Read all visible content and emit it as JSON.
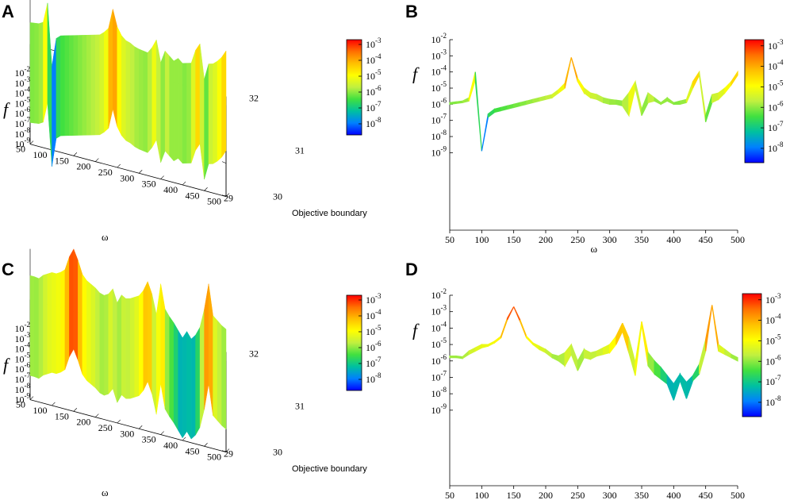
{
  "colors": {
    "colorbar_stops": [
      "#0000ff",
      "#0080ff",
      "#00c0a0",
      "#40e040",
      "#c0f040",
      "#ffff00",
      "#ffc000",
      "#ff7000",
      "#ff0000"
    ],
    "axis": "#000000",
    "surface_edge": "#000000"
  },
  "panels": [
    {
      "label": "A",
      "chart_data": {
        "type": "surface3d",
        "xlabel": "ω",
        "ylabel": "Objective boundary",
        "zlabel": "f",
        "x_ticks": [
          "50",
          "100",
          "150",
          "200",
          "250",
          "300",
          "350",
          "400",
          "450",
          "500"
        ],
        "y_ticks": [
          "29",
          "30",
          "31",
          "32"
        ],
        "z_ticks": [
          {
            "base": "10",
            "exp": "-2"
          },
          {
            "base": "10",
            "exp": "-3"
          },
          {
            "base": "10",
            "exp": "-4"
          },
          {
            "base": "10",
            "exp": "-5"
          },
          {
            "base": "10",
            "exp": "-6"
          },
          {
            "base": "10",
            "exp": "-7"
          },
          {
            "base": "10",
            "exp": "-8"
          },
          {
            "base": "10",
            "exp": "-9"
          }
        ],
        "colorbar_ticks": [
          {
            "base": "10",
            "exp": "-3"
          },
          {
            "base": "10",
            "exp": "-4"
          },
          {
            "base": "10",
            "exp": "-5"
          },
          {
            "base": "10",
            "exp": "-6"
          },
          {
            "base": "10",
            "exp": "-7"
          },
          {
            "base": "10",
            "exp": "-8"
          }
        ],
        "xlim": [
          50,
          500
        ],
        "ylim": [
          29,
          32
        ],
        "zlim_log10": [
          -9,
          -2
        ],
        "omega": [
          50,
          60,
          70,
          80,
          90,
          100,
          110,
          120,
          130,
          140,
          150,
          160,
          170,
          180,
          190,
          200,
          210,
          220,
          230,
          240,
          250,
          260,
          270,
          280,
          290,
          300,
          310,
          320,
          330,
          340,
          350,
          360,
          370,
          380,
          390,
          400,
          410,
          420,
          430,
          440,
          450,
          460,
          470,
          480,
          490,
          500
        ],
        "log10_f": [
          -5.9,
          -5.85,
          -5.8,
          -5.6,
          -4.0,
          -8.9,
          -6.6,
          -6.3,
          -6.2,
          -6.1,
          -6.0,
          -5.9,
          -5.8,
          -5.7,
          -5.6,
          -5.5,
          -5.4,
          -5.1,
          -4.7,
          -3.1,
          -4.4,
          -5.0,
          -5.3,
          -5.4,
          -5.6,
          -5.7,
          -5.75,
          -5.8,
          -5.3,
          -4.6,
          -6.3,
          -5.3,
          -5.6,
          -5.9,
          -5.6,
          -5.9,
          -5.8,
          -5.7,
          -4.6,
          -4.0,
          -6.7,
          -5.4,
          -5.3,
          -5.0,
          -4.6,
          -4.0
        ]
      }
    },
    {
      "label": "B",
      "chart_data": {
        "type": "line",
        "xlabel": "ω",
        "ylabel": "f",
        "x_ticks": [
          "50",
          "100",
          "150",
          "200",
          "250",
          "300",
          "350",
          "400",
          "450",
          "500"
        ],
        "y_ticks": [
          {
            "base": "10",
            "exp": "-2"
          },
          {
            "base": "10",
            "exp": "-3"
          },
          {
            "base": "10",
            "exp": "-4"
          },
          {
            "base": "10",
            "exp": "-5"
          },
          {
            "base": "10",
            "exp": "-6"
          },
          {
            "base": "10",
            "exp": "-7"
          },
          {
            "base": "10",
            "exp": "-8"
          },
          {
            "base": "10",
            "exp": "-9"
          }
        ],
        "colorbar_ticks": [
          {
            "base": "10",
            "exp": "-3"
          },
          {
            "base": "10",
            "exp": "-4"
          },
          {
            "base": "10",
            "exp": "-5"
          },
          {
            "base": "10",
            "exp": "-6"
          },
          {
            "base": "10",
            "exp": "-7"
          },
          {
            "base": "10",
            "exp": "-8"
          }
        ],
        "xlim": [
          50,
          500
        ],
        "ylim_log10": [
          -13.8,
          -2
        ],
        "omega": [
          50,
          60,
          70,
          80,
          90,
          100,
          110,
          120,
          130,
          140,
          150,
          160,
          170,
          180,
          190,
          200,
          210,
          220,
          230,
          240,
          250,
          260,
          270,
          280,
          290,
          300,
          310,
          320,
          330,
          340,
          350,
          360,
          370,
          380,
          390,
          400,
          410,
          420,
          430,
          440,
          450,
          460,
          470,
          480,
          490,
          500
        ],
        "log10_f": [
          -5.9,
          -5.85,
          -5.8,
          -5.6,
          -4.0,
          -8.9,
          -6.6,
          -6.3,
          -6.2,
          -6.1,
          -6.0,
          -5.9,
          -5.8,
          -5.7,
          -5.6,
          -5.5,
          -5.4,
          -5.1,
          -4.7,
          -3.1,
          -4.4,
          -5.0,
          -5.3,
          -5.4,
          -5.6,
          -5.7,
          -5.75,
          -5.8,
          -5.3,
          -4.6,
          -6.3,
          -5.3,
          -5.6,
          -5.9,
          -5.6,
          -5.9,
          -5.8,
          -5.7,
          -4.6,
          -4.0,
          -6.7,
          -5.4,
          -5.3,
          -5.0,
          -4.6,
          -4.0
        ],
        "log10_f_lower": [
          -6.0,
          -5.95,
          -5.9,
          -5.8,
          -4.5,
          -8.9,
          -6.8,
          -6.5,
          -6.4,
          -6.3,
          -6.2,
          -6.1,
          -6.0,
          -5.9,
          -5.8,
          -5.7,
          -5.6,
          -5.3,
          -5.0,
          -3.1,
          -4.6,
          -5.3,
          -5.6,
          -5.7,
          -5.9,
          -6.0,
          -6.0,
          -6.1,
          -6.7,
          -5.0,
          -6.7,
          -5.9,
          -5.8,
          -6.0,
          -5.8,
          -6.0,
          -6.0,
          -5.9,
          -5.0,
          -4.2,
          -7.1,
          -5.9,
          -5.7,
          -5.3,
          -4.8,
          -4.2
        ]
      }
    },
    {
      "label": "C",
      "chart_data": {
        "type": "surface3d",
        "xlabel": "ω",
        "ylabel": "Objective boundary",
        "zlabel": "f",
        "x_ticks": [
          "50",
          "100",
          "150",
          "200",
          "250",
          "300",
          "350",
          "400",
          "450",
          "500"
        ],
        "y_ticks": [
          "29",
          "30",
          "31",
          "32"
        ],
        "z_ticks": [
          {
            "base": "10",
            "exp": "-2"
          },
          {
            "base": "10",
            "exp": "-3"
          },
          {
            "base": "10",
            "exp": "-4"
          },
          {
            "base": "10",
            "exp": "-5"
          },
          {
            "base": "10",
            "exp": "-6"
          },
          {
            "base": "10",
            "exp": "-7"
          },
          {
            "base": "10",
            "exp": "-8"
          },
          {
            "base": "10",
            "exp": "-9"
          }
        ],
        "colorbar_ticks": [
          {
            "base": "10",
            "exp": "-3"
          },
          {
            "base": "10",
            "exp": "-4"
          },
          {
            "base": "10",
            "exp": "-5"
          },
          {
            "base": "10",
            "exp": "-6"
          },
          {
            "base": "10",
            "exp": "-7"
          },
          {
            "base": "10",
            "exp": "-8"
          }
        ],
        "xlim": [
          50,
          500
        ],
        "ylim": [
          29,
          32
        ],
        "zlim_log10": [
          -9,
          -2
        ],
        "omega": [
          50,
          60,
          70,
          80,
          90,
          100,
          110,
          120,
          130,
          140,
          150,
          160,
          170,
          180,
          190,
          200,
          210,
          220,
          230,
          240,
          250,
          260,
          270,
          280,
          290,
          300,
          310,
          320,
          330,
          340,
          350,
          360,
          370,
          380,
          390,
          400,
          410,
          420,
          430,
          440,
          450,
          460,
          470,
          480,
          490,
          500
        ],
        "log10_f": [
          -5.7,
          -5.7,
          -5.75,
          -5.4,
          -5.2,
          -5.0,
          -5.0,
          -4.8,
          -4.5,
          -3.4,
          -2.7,
          -3.5,
          -4.5,
          -4.9,
          -5.1,
          -5.3,
          -5.6,
          -5.7,
          -5.5,
          -5.0,
          -6.0,
          -5.3,
          -5.5,
          -5.4,
          -5.2,
          -5.0,
          -4.5,
          -3.7,
          -4.6,
          -6.1,
          -3.6,
          -5.5,
          -6.0,
          -6.4,
          -6.9,
          -7.4,
          -6.8,
          -7.3,
          -6.9,
          -6.2,
          -4.7,
          -2.6,
          -5.0,
          -5.3,
          -5.6,
          -5.8
        ]
      }
    },
    {
      "label": "D",
      "chart_data": {
        "type": "line",
        "xlabel": "ω",
        "ylabel": "f",
        "x_ticks": [
          "50",
          "100",
          "150",
          "200",
          "250",
          "300",
          "350",
          "400",
          "450",
          "500"
        ],
        "y_ticks": [
          {
            "base": "10",
            "exp": "-2"
          },
          {
            "base": "10",
            "exp": "-3"
          },
          {
            "base": "10",
            "exp": "-4"
          },
          {
            "base": "10",
            "exp": "-5"
          },
          {
            "base": "10",
            "exp": "-6"
          },
          {
            "base": "10",
            "exp": "-7"
          },
          {
            "base": "10",
            "exp": "-8"
          },
          {
            "base": "10",
            "exp": "-9"
          }
        ],
        "colorbar_ticks": [
          {
            "base": "10",
            "exp": "-3"
          },
          {
            "base": "10",
            "exp": "-4"
          },
          {
            "base": "10",
            "exp": "-5"
          },
          {
            "base": "10",
            "exp": "-6"
          },
          {
            "base": "10",
            "exp": "-7"
          },
          {
            "base": "10",
            "exp": "-8"
          }
        ],
        "xlim": [
          50,
          500
        ],
        "ylim_log10": [
          -13.6,
          -2
        ],
        "omega": [
          50,
          60,
          70,
          80,
          90,
          100,
          110,
          120,
          130,
          140,
          150,
          160,
          170,
          180,
          190,
          200,
          210,
          220,
          230,
          240,
          250,
          260,
          270,
          280,
          290,
          300,
          310,
          320,
          330,
          340,
          350,
          360,
          370,
          380,
          390,
          400,
          410,
          420,
          430,
          440,
          450,
          460,
          470,
          480,
          490,
          500
        ],
        "log10_f": [
          -5.7,
          -5.7,
          -5.75,
          -5.4,
          -5.2,
          -5.0,
          -5.0,
          -4.8,
          -4.5,
          -3.4,
          -2.7,
          -3.5,
          -4.5,
          -4.9,
          -5.1,
          -5.3,
          -5.6,
          -5.7,
          -5.5,
          -5.0,
          -6.0,
          -5.3,
          -5.5,
          -5.4,
          -5.2,
          -5.0,
          -4.5,
          -3.7,
          -4.6,
          -6.1,
          -3.6,
          -5.5,
          -6.0,
          -6.4,
          -6.9,
          -7.4,
          -6.8,
          -7.3,
          -6.9,
          -6.2,
          -4.7,
          -2.6,
          -5.0,
          -5.3,
          -5.6,
          -5.8
        ],
        "log10_f_lower": [
          -5.8,
          -5.8,
          -5.85,
          -5.6,
          -5.4,
          -5.2,
          -5.1,
          -4.9,
          -4.6,
          -3.5,
          -2.7,
          -3.6,
          -4.6,
          -5.0,
          -5.3,
          -5.5,
          -5.8,
          -6.0,
          -6.3,
          -5.6,
          -6.6,
          -5.8,
          -5.9,
          -5.7,
          -5.6,
          -5.5,
          -5.0,
          -4.2,
          -5.5,
          -6.9,
          -3.8,
          -6.3,
          -6.8,
          -7.1,
          -7.4,
          -8.4,
          -7.2,
          -8.3,
          -7.2,
          -6.8,
          -5.4,
          -2.6,
          -5.4,
          -5.6,
          -5.8,
          -6.0
        ]
      }
    }
  ]
}
